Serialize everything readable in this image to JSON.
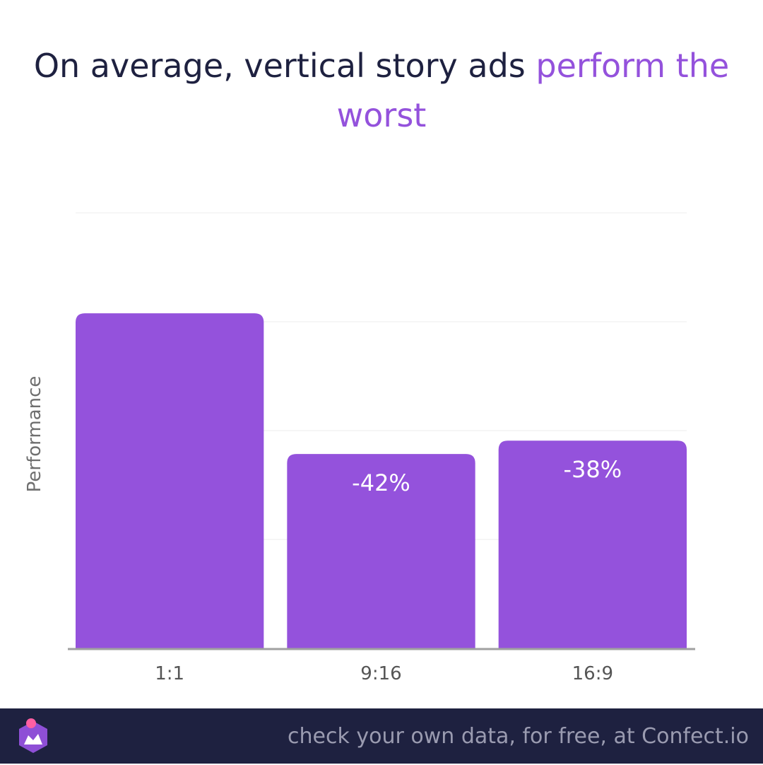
{
  "headline": {
    "text_main": "On average, vertical story ads ",
    "text_accent": "perform the worst"
  },
  "footer": {
    "text": "check your own data, for free, at Confect.io",
    "logo_icon": "confect-logo-icon"
  },
  "colors": {
    "bar": "#9452dc",
    "headline": "#1e2140",
    "accent": "#9452dc",
    "footer_bg": "#1e2140",
    "footer_text": "#9a9bb0",
    "axis": "#a0a0a0",
    "grid": "#ececec"
  },
  "chart_data": {
    "type": "bar",
    "title": "On average, vertical story ads perform the worst",
    "xlabel": "",
    "ylabel": "Performance",
    "categories": [
      "1:1",
      "9:16",
      "16:9"
    ],
    "values": [
      100,
      58,
      62
    ],
    "data_labels": [
      "",
      "-42%",
      "-38%"
    ],
    "ylim": [
      0,
      130
    ],
    "y_tick_labels_shown": false,
    "grid": true,
    "legend": "none"
  }
}
